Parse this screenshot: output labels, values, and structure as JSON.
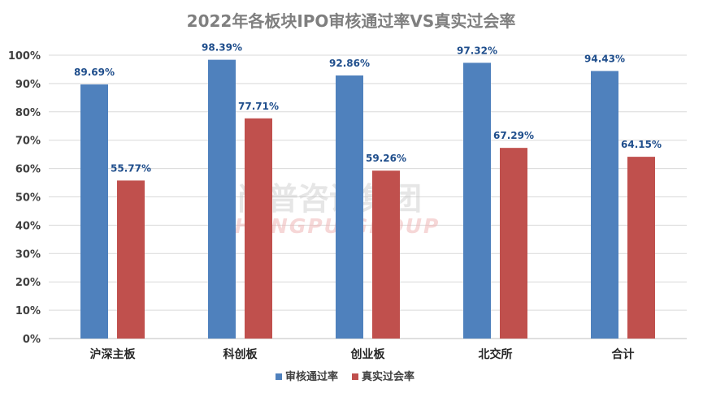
{
  "chart_data": {
    "type": "bar",
    "title": "2022年各板块IPO审核通过率VS真实过会率",
    "categories": [
      "沪深主板",
      "科创板",
      "创业板",
      "北交所",
      "合计"
    ],
    "series": [
      {
        "name": "审核通过率",
        "color": "#4F81BD",
        "label_color": "#1F4E8C",
        "values": [
          89.69,
          98.39,
          92.86,
          97.32,
          94.43
        ],
        "labels": [
          "89.69%",
          "98.39%",
          "92.86%",
          "97.32%",
          "94.43%"
        ]
      },
      {
        "name": "真实过会率",
        "color": "#C0504D",
        "label_color": "#1F4E8C",
        "values": [
          55.77,
          77.71,
          59.26,
          67.29,
          64.15
        ],
        "labels": [
          "55.77%",
          "77.71%",
          "59.26%",
          "67.29%",
          "64.15%"
        ]
      }
    ],
    "ylim": [
      0,
      100
    ],
    "yticks": [
      "0%",
      "10%",
      "20%",
      "30%",
      "40%",
      "50%",
      "60%",
      "70%",
      "80%",
      "90%",
      "100%"
    ],
    "grid": true,
    "legend_position": "bottom"
  },
  "watermark": {
    "cn": "尚普咨询集团",
    "en": "SHANGPU GROUP"
  },
  "colors": {
    "grid": "#d9d9d9",
    "axis": "#bfbfbf"
  }
}
